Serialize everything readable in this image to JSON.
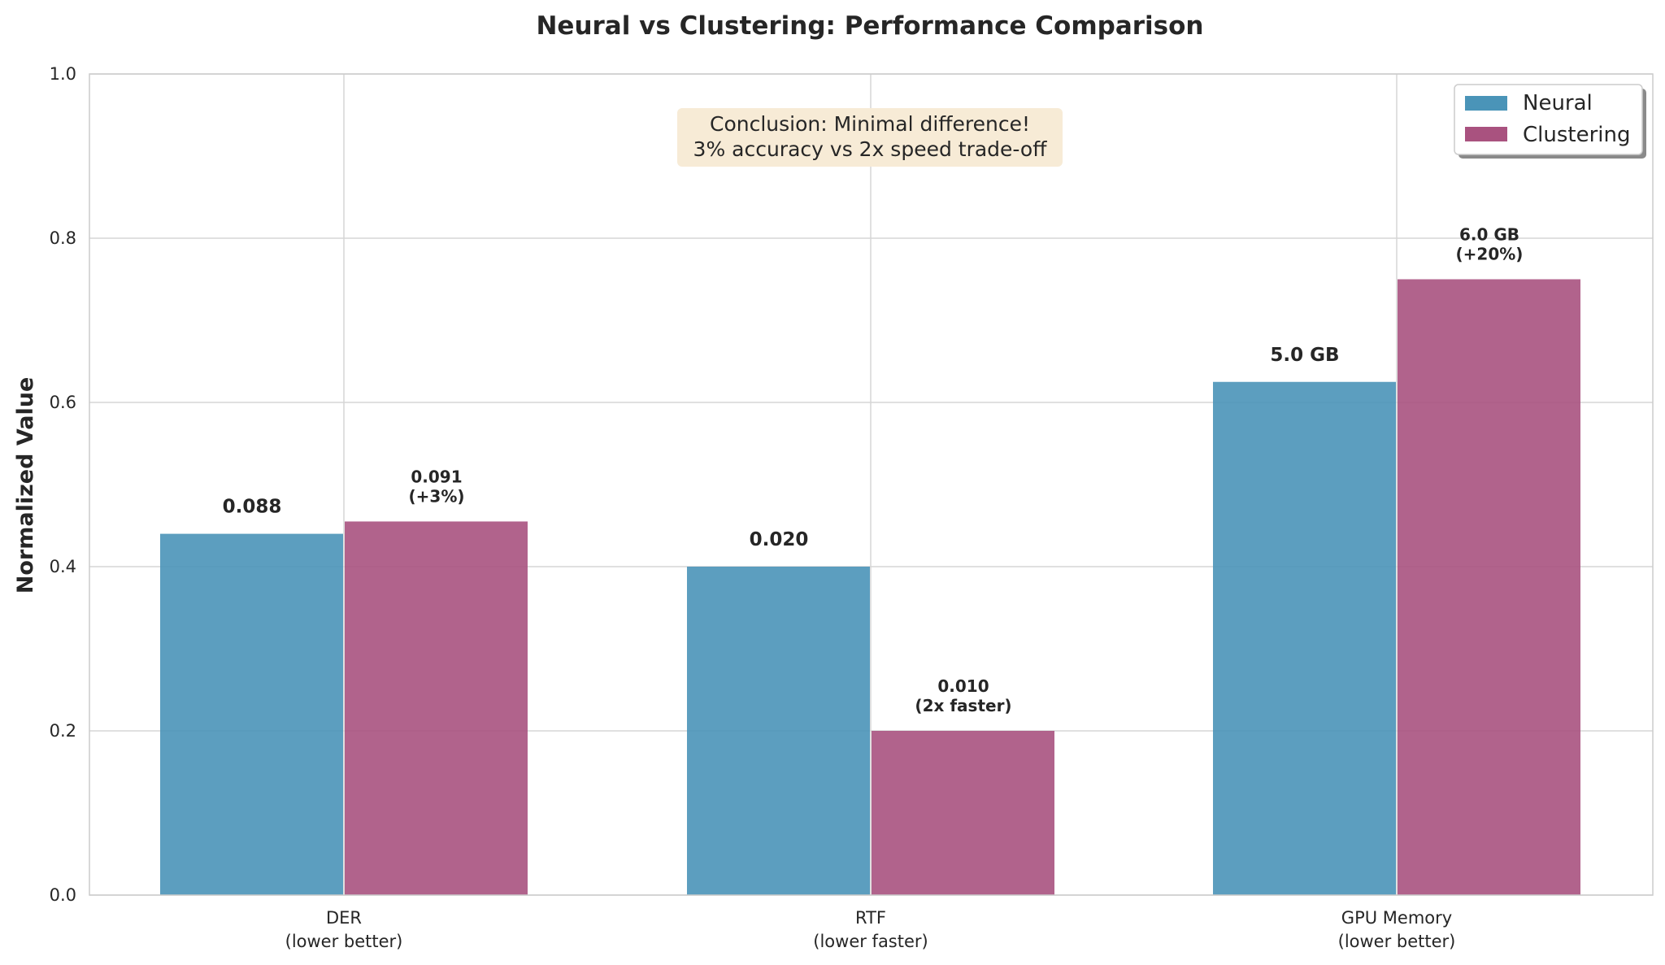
{
  "chart_data": {
    "type": "bar",
    "title": "Neural vs Clustering: Performance Comparison",
    "ylabel": "Normalized Value",
    "xlabel": "",
    "ylim": [
      0,
      1.0
    ],
    "yticks": [
      "0.0",
      "0.2",
      "0.4",
      "0.6",
      "0.8",
      "1.0"
    ],
    "yticks_values": [
      0,
      0.2,
      0.4,
      0.6,
      0.8,
      1.0
    ],
    "grid": true,
    "legend_position": "top-right",
    "categories": [
      [
        "DER",
        "(lower better)"
      ],
      [
        "RTF",
        "(lower faster)"
      ],
      [
        "GPU Memory",
        "(lower better)"
      ]
    ],
    "series": [
      {
        "name": "Neural",
        "color": "#4A94B8",
        "values": [
          0.44,
          0.4,
          0.625
        ],
        "labels": [
          [
            "0.088"
          ],
          [
            "0.020"
          ],
          [
            "5.0 GB"
          ]
        ]
      },
      {
        "name": "Clustering",
        "color": "#A9527F",
        "values": [
          0.455,
          0.2,
          0.75
        ],
        "labels": [
          [
            "0.091",
            "(+3%)"
          ],
          [
            "0.010",
            "(2x faster)"
          ],
          [
            "6.0 GB",
            "(+20%)"
          ]
        ]
      }
    ],
    "annotation": {
      "lines": [
        "Conclusion: Minimal difference!",
        "3% accuracy vs 2x speed trade-off"
      ],
      "background": "#F7EBD6"
    }
  }
}
